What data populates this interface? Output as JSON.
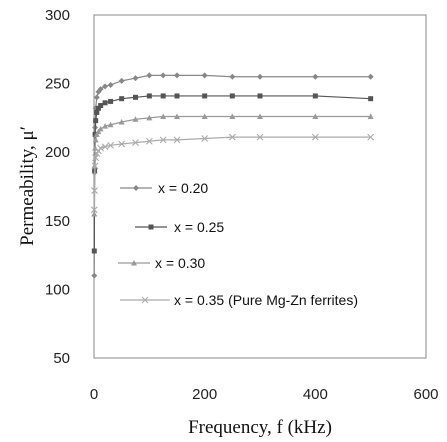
{
  "chart_data": {
    "type": "line",
    "xlabel": "Frequency, f  (kHz)",
    "ylabel": "Permeability, μ′",
    "xlim": [
      0,
      600
    ],
    "ylim": [
      50,
      300
    ],
    "xticks": [
      "0",
      "200",
      "400",
      "600"
    ],
    "yticks": [
      "300",
      "250",
      "200",
      "150",
      "100",
      "50"
    ],
    "grid": false,
    "legend_position": "center-left",
    "series": [
      {
        "name": "x = 0.20",
        "marker": "diamond",
        "color": "#888888",
        "x": [
          0.5,
          1,
          2,
          3,
          5,
          8,
          12,
          20,
          30,
          50,
          75,
          100,
          125,
          150,
          200,
          250,
          300,
          400,
          500
        ],
        "y": [
          110,
          185,
          218,
          232,
          240,
          244,
          246,
          248,
          249,
          252,
          254,
          256,
          256,
          256,
          256,
          255,
          255,
          255,
          255
        ]
      },
      {
        "name": "x = 0.25",
        "marker": "square",
        "color": "#555555",
        "x": [
          0.5,
          1,
          2,
          3,
          5,
          8,
          12,
          20,
          30,
          50,
          75,
          100,
          125,
          150,
          200,
          250,
          300,
          400,
          500
        ],
        "y": [
          128,
          187,
          213,
          223,
          229,
          232,
          234,
          236,
          237,
          239,
          240,
          241,
          241,
          241,
          241,
          241,
          241,
          241,
          239
        ]
      },
      {
        "name": "x = 0.30",
        "marker": "triangle",
        "color": "#999999",
        "x": [
          0.5,
          1,
          2,
          3,
          5,
          8,
          12,
          20,
          30,
          50,
          75,
          100,
          125,
          150,
          200,
          250,
          300,
          400,
          500
        ],
        "y": [
          155,
          190,
          203,
          209,
          213,
          215,
          217,
          219,
          220,
          222,
          224,
          225,
          226,
          226,
          226,
          226,
          226,
          226,
          226
        ]
      },
      {
        "name": "x = 0.35 (Pure Mg-Zn ferrites)",
        "marker": "x",
        "color": "#aaaaaa",
        "x": [
          0.5,
          1,
          2,
          3,
          5,
          8,
          12,
          20,
          30,
          50,
          75,
          100,
          125,
          150,
          200,
          250,
          300,
          400,
          500
        ],
        "y": [
          158,
          172,
          190,
          196,
          199,
          201,
          203,
          204,
          205,
          206,
          207,
          208,
          209,
          209,
          210,
          211,
          211,
          211,
          211
        ]
      }
    ]
  }
}
